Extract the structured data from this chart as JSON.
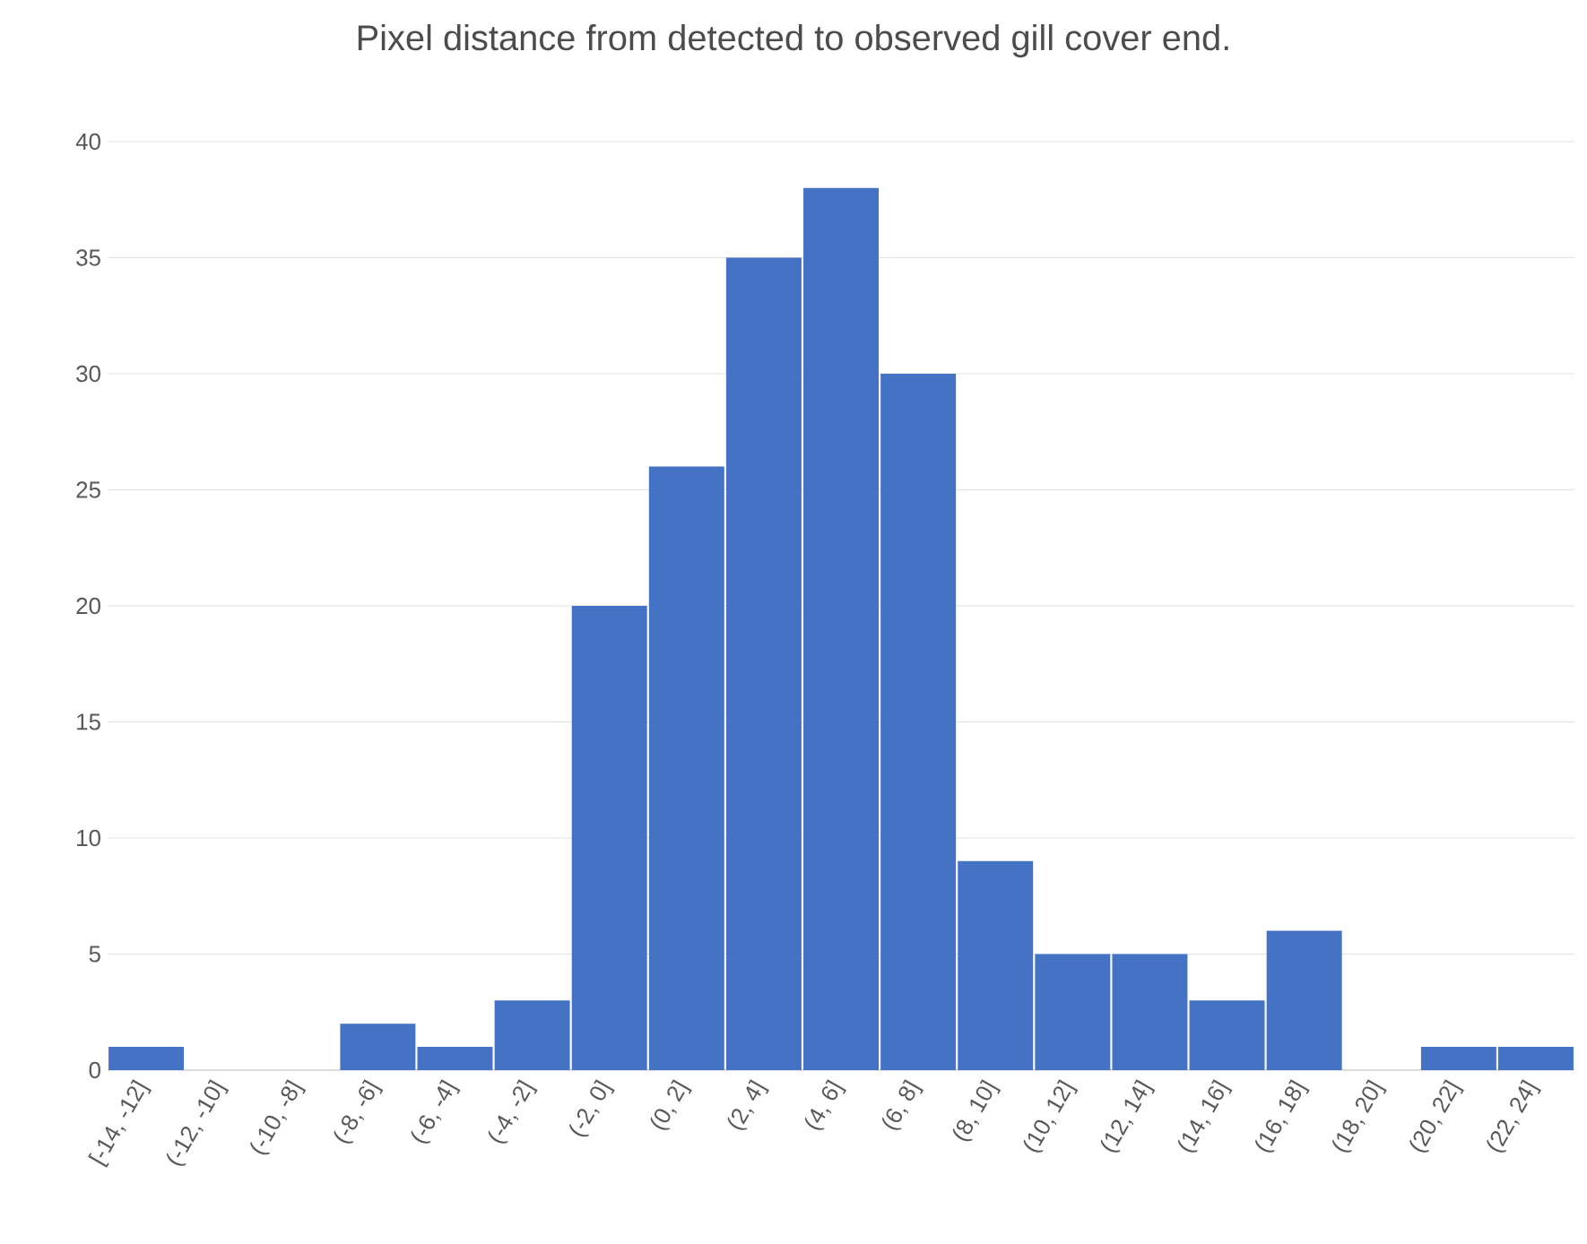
{
  "chart_data": {
    "type": "bar",
    "title": "Pixel distance from detected to observed gill cover end.",
    "categories": [
      "[-14, -12]",
      "(-12, -10]",
      "(-10, -8]",
      "(-8, -6]",
      "(-6, -4]",
      "(-4, -2]",
      "(-2, 0]",
      "(0, 2]",
      "(2, 4]",
      "(4, 6]",
      "(6, 8]",
      "(8, 10]",
      "(10, 12]",
      "(12, 14]",
      "(14, 16]",
      "(16, 18]",
      "(18, 20]",
      "(20, 22]",
      "(22, 24]"
    ],
    "values": [
      1,
      0,
      0,
      2,
      1,
      3,
      20,
      26,
      35,
      38,
      30,
      9,
      5,
      5,
      3,
      6,
      0,
      1,
      1
    ],
    "color": "#4472c4",
    "ylim": [
      0,
      40
    ],
    "yticks": [
      0,
      5,
      10,
      15,
      20,
      25,
      30,
      35,
      40
    ],
    "grid": "y"
  }
}
